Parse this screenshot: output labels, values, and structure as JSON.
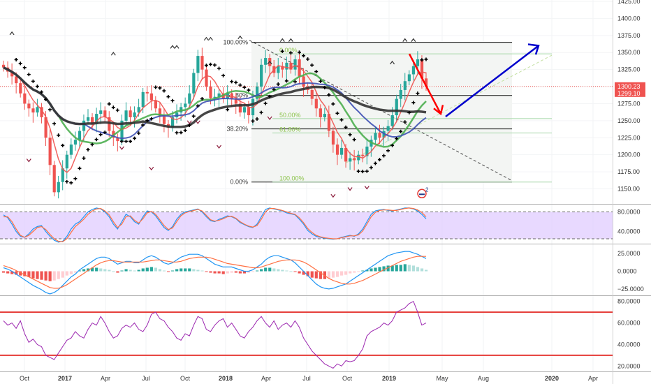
{
  "chart_data": [
    {
      "type": "candlestick",
      "title": "",
      "timeframe": "weekly",
      "x_ticks": [
        "Oct",
        "2017",
        "Apr",
        "Jul",
        "Oct",
        "2018",
        "Apr",
        "Jul",
        "Oct",
        "2019",
        "May",
        "Aug",
        "2020",
        "Apr"
      ],
      "bold_ticks": [
        "2017",
        "2018",
        "2019",
        "2020"
      ],
      "ylim": [
        1130,
        1425
      ],
      "y_ticks": [
        1150,
        1175,
        1200,
        1225,
        1250,
        1275,
        1300,
        1325,
        1350,
        1375,
        1400,
        1425
      ],
      "price_labels": [
        {
          "value": "1300.23",
          "color": "#ef5350"
        },
        {
          "value": "1299.10",
          "color": "#ef5350"
        }
      ],
      "price_line": 1300.23,
      "weekly_close": [
        1328,
        1322,
        1315,
        1305,
        1290,
        1275,
        1268,
        1262,
        1270,
        1255,
        1225,
        1185,
        1145,
        1160,
        1180,
        1200,
        1215,
        1222,
        1235,
        1250,
        1255,
        1245,
        1260,
        1265,
        1255,
        1235,
        1225,
        1220,
        1250,
        1265,
        1255,
        1262,
        1270,
        1292,
        1290,
        1280,
        1268,
        1256,
        1245,
        1240,
        1255,
        1262,
        1270,
        1275,
        1290,
        1320,
        1345,
        1325,
        1300,
        1283,
        1285,
        1290,
        1282,
        1290,
        1282,
        1275,
        1262,
        1270,
        1258,
        1282,
        1300,
        1332,
        1342,
        1330,
        1320,
        1330,
        1325,
        1335,
        1325,
        1340,
        1315,
        1300,
        1295,
        1282,
        1268,
        1255,
        1260,
        1235,
        1215,
        1200,
        1210,
        1190,
        1195,
        1192,
        1200,
        1198,
        1212,
        1222,
        1232,
        1225,
        1235,
        1242,
        1258,
        1282,
        1295,
        1308,
        1318,
        1330,
        1340,
        1312,
        1300
      ],
      "series": [
        {
          "name": "",
          "color": "#ef5350"
        },
        {
          "name": "",
          "color": "#4caf50"
        },
        {
          "name": "",
          "color": "#3f51b5"
        },
        {
          "name": "",
          "color": "#333333"
        }
      ],
      "fib_levels": [
        {
          "label": "100.00%",
          "value": 1365
        },
        {
          "label": "61.80%",
          "value": 1287
        },
        {
          "label": "38.20%",
          "value": 1238
        },
        {
          "label": "0.00%",
          "value": 1160
        }
      ],
      "fib_levels_secondary": [
        {
          "label": "0.00%",
          "value": 1348
        },
        {
          "label": "50.00%",
          "value": 1253
        },
        {
          "label": "61.80%",
          "value": 1232
        },
        {
          "label": "100.00%",
          "value": 1160
        }
      ],
      "annotation_badge": "2",
      "colors": {
        "up": "#26a69a",
        "down": "#ef5350",
        "forecast_down": "#ff0000",
        "forecast_up": "#0000cc"
      }
    },
    {
      "type": "line",
      "title": "",
      "ylim": [
        15,
        95
      ],
      "y_ticks": [
        "80.0000",
        "40.0000"
      ],
      "band": [
        25,
        80
      ],
      "band_color": "#e0ccff",
      "series": [
        {
          "name": "",
          "color": "#2196f3",
          "values": [
            74,
            68,
            55,
            40,
            30,
            28,
            35,
            45,
            50,
            52,
            40,
            30,
            22,
            18,
            20,
            30,
            45,
            55,
            60,
            70,
            80,
            85,
            88,
            86,
            80,
            70,
            55,
            45,
            60,
            75,
            70,
            60,
            55,
            70,
            82,
            80,
            72,
            60,
            48,
            42,
            50,
            65,
            75,
            80,
            82,
            84,
            86,
            80,
            70,
            62,
            60,
            65,
            68,
            72,
            70,
            66,
            58,
            54,
            50,
            48,
            55,
            70,
            85,
            88,
            86,
            84,
            82,
            78,
            76,
            74,
            65,
            55,
            42,
            35,
            30,
            28,
            26,
            25,
            24,
            25,
            28,
            30,
            32,
            30,
            35,
            45,
            60,
            75,
            82,
            84,
            85,
            83,
            82,
            84,
            86,
            88,
            88,
            86,
            82,
            75,
            66
          ]
        },
        {
          "name": "",
          "color": "#ff7043",
          "values": [
            70,
            70,
            60,
            45,
            32,
            28,
            32,
            40,
            48,
            50,
            44,
            34,
            25,
            20,
            19,
            25,
            38,
            50,
            57,
            65,
            75,
            82,
            86,
            87,
            82,
            74,
            60,
            48,
            55,
            70,
            72,
            63,
            57,
            66,
            78,
            81,
            75,
            64,
            52,
            44,
            47,
            60,
            72,
            78,
            81,
            83,
            85,
            82,
            73,
            64,
            61,
            63,
            66,
            70,
            71,
            67,
            60,
            55,
            51,
            49,
            52,
            65,
            80,
            87,
            87,
            85,
            83,
            80,
            77,
            75,
            68,
            58,
            46,
            38,
            32,
            29,
            27,
            26,
            25,
            25,
            27,
            29,
            31,
            31,
            33,
            41,
            55,
            70,
            79,
            83,
            84,
            84,
            83,
            83,
            85,
            87,
            88,
            87,
            84,
            79,
            70
          ]
        }
      ]
    },
    {
      "type": "bar",
      "title": "",
      "ylim": [
        -34,
        38
      ],
      "y_ticks": [
        "25.0000",
        "0.0000",
        "−25.0000"
      ],
      "histogram": [
        -2,
        -3,
        -4,
        -5,
        -6,
        -7,
        -8,
        -10,
        -11,
        -12,
        -13,
        -14,
        -13,
        -11,
        -9,
        -6,
        -4,
        -2,
        1,
        3,
        4,
        5,
        5,
        4,
        3,
        2,
        0,
        -2,
        1,
        3,
        2,
        1,
        2,
        4,
        5,
        6,
        5,
        3,
        1,
        -1,
        1,
        3,
        4,
        4,
        4,
        3,
        2,
        1,
        -1,
        -2,
        -3,
        -3,
        -4,
        -3,
        -2,
        -2,
        -3,
        -3,
        -2,
        -1,
        1,
        3,
        5,
        5,
        4,
        3,
        2,
        1,
        0,
        -1,
        -3,
        -5,
        -7,
        -9,
        -10,
        -11,
        -11,
        -10,
        -9,
        -8,
        -6,
        -5,
        -3,
        -2,
        -1,
        1,
        2,
        4,
        5,
        6,
        7,
        8,
        8,
        9,
        9,
        10,
        9,
        8,
        6,
        4,
        2
      ],
      "series": [
        {
          "name": "",
          "color": "#2196f3",
          "values": [
            5,
            3,
            0,
            -4,
            -8,
            -12,
            -16,
            -20,
            -23,
            -26,
            -30,
            -32,
            -30,
            -26,
            -20,
            -14,
            -8,
            -4,
            2,
            6,
            10,
            14,
            18,
            20,
            20,
            18,
            14,
            10,
            12,
            14,
            14,
            12,
            12,
            16,
            20,
            22,
            20,
            16,
            12,
            10,
            12,
            16,
            20,
            22,
            24,
            24,
            24,
            22,
            18,
            14,
            10,
            8,
            6,
            6,
            6,
            4,
            2,
            0,
            0,
            2,
            6,
            10,
            16,
            20,
            22,
            22,
            20,
            18,
            16,
            12,
            6,
            0,
            -6,
            -12,
            -18,
            -22,
            -24,
            -25,
            -24,
            -22,
            -20,
            -18,
            -14,
            -10,
            -6,
            -2,
            2,
            6,
            10,
            14,
            18,
            22,
            24,
            26,
            27,
            28,
            28,
            26,
            24,
            21,
            18
          ]
        },
        {
          "name": "",
          "color": "#ff7043",
          "values": [
            8,
            6,
            4,
            1,
            -2,
            -5,
            -8,
            -11,
            -14,
            -17,
            -20,
            -23,
            -24,
            -24,
            -22,
            -19,
            -15,
            -11,
            -7,
            -3,
            1,
            5,
            9,
            12,
            14,
            15,
            15,
            14,
            13,
            13,
            13,
            13,
            13,
            13,
            14,
            15,
            16,
            16,
            15,
            14,
            13,
            13,
            14,
            16,
            18,
            19,
            20,
            20,
            20,
            19,
            17,
            15,
            13,
            11,
            10,
            9,
            8,
            7,
            6,
            5,
            5,
            6,
            8,
            10,
            12,
            14,
            15,
            16,
            16,
            16,
            15,
            13,
            10,
            6,
            2,
            -2,
            -6,
            -10,
            -13,
            -15,
            -17,
            -18,
            -18,
            -17,
            -15,
            -13,
            -10,
            -7,
            -4,
            -1,
            2,
            5,
            8,
            11,
            14,
            16,
            18,
            20,
            21,
            21,
            21
          ]
        }
      ]
    },
    {
      "type": "line",
      "title": "",
      "ylim": [
        15,
        85
      ],
      "y_ticks": [
        "80.0000",
        "60.0000",
        "40.0000",
        "20.0000"
      ],
      "hlines": [
        70,
        30
      ],
      "hline_color": "#e53935",
      "series": [
        {
          "name": "",
          "color": "#9c27b0",
          "values": [
            62,
            58,
            60,
            55,
            62,
            50,
            42,
            45,
            40,
            38,
            30,
            28,
            26,
            32,
            38,
            44,
            46,
            52,
            48,
            46,
            54,
            60,
            58,
            66,
            60,
            52,
            46,
            48,
            55,
            58,
            56,
            60,
            54,
            52,
            58,
            68,
            70,
            64,
            62,
            56,
            52,
            46,
            44,
            50,
            48,
            58,
            66,
            64,
            54,
            52,
            58,
            62,
            64,
            56,
            60,
            54,
            48,
            46,
            52,
            56,
            62,
            66,
            60,
            56,
            62,
            54,
            58,
            60,
            56,
            62,
            56,
            46,
            40,
            34,
            30,
            26,
            22,
            20,
            18,
            22,
            20,
            25,
            24,
            25,
            30,
            36,
            48,
            52,
            54,
            56,
            60,
            58,
            62,
            70,
            72,
            74,
            78,
            80,
            70,
            58,
            60
          ]
        }
      ]
    }
  ]
}
